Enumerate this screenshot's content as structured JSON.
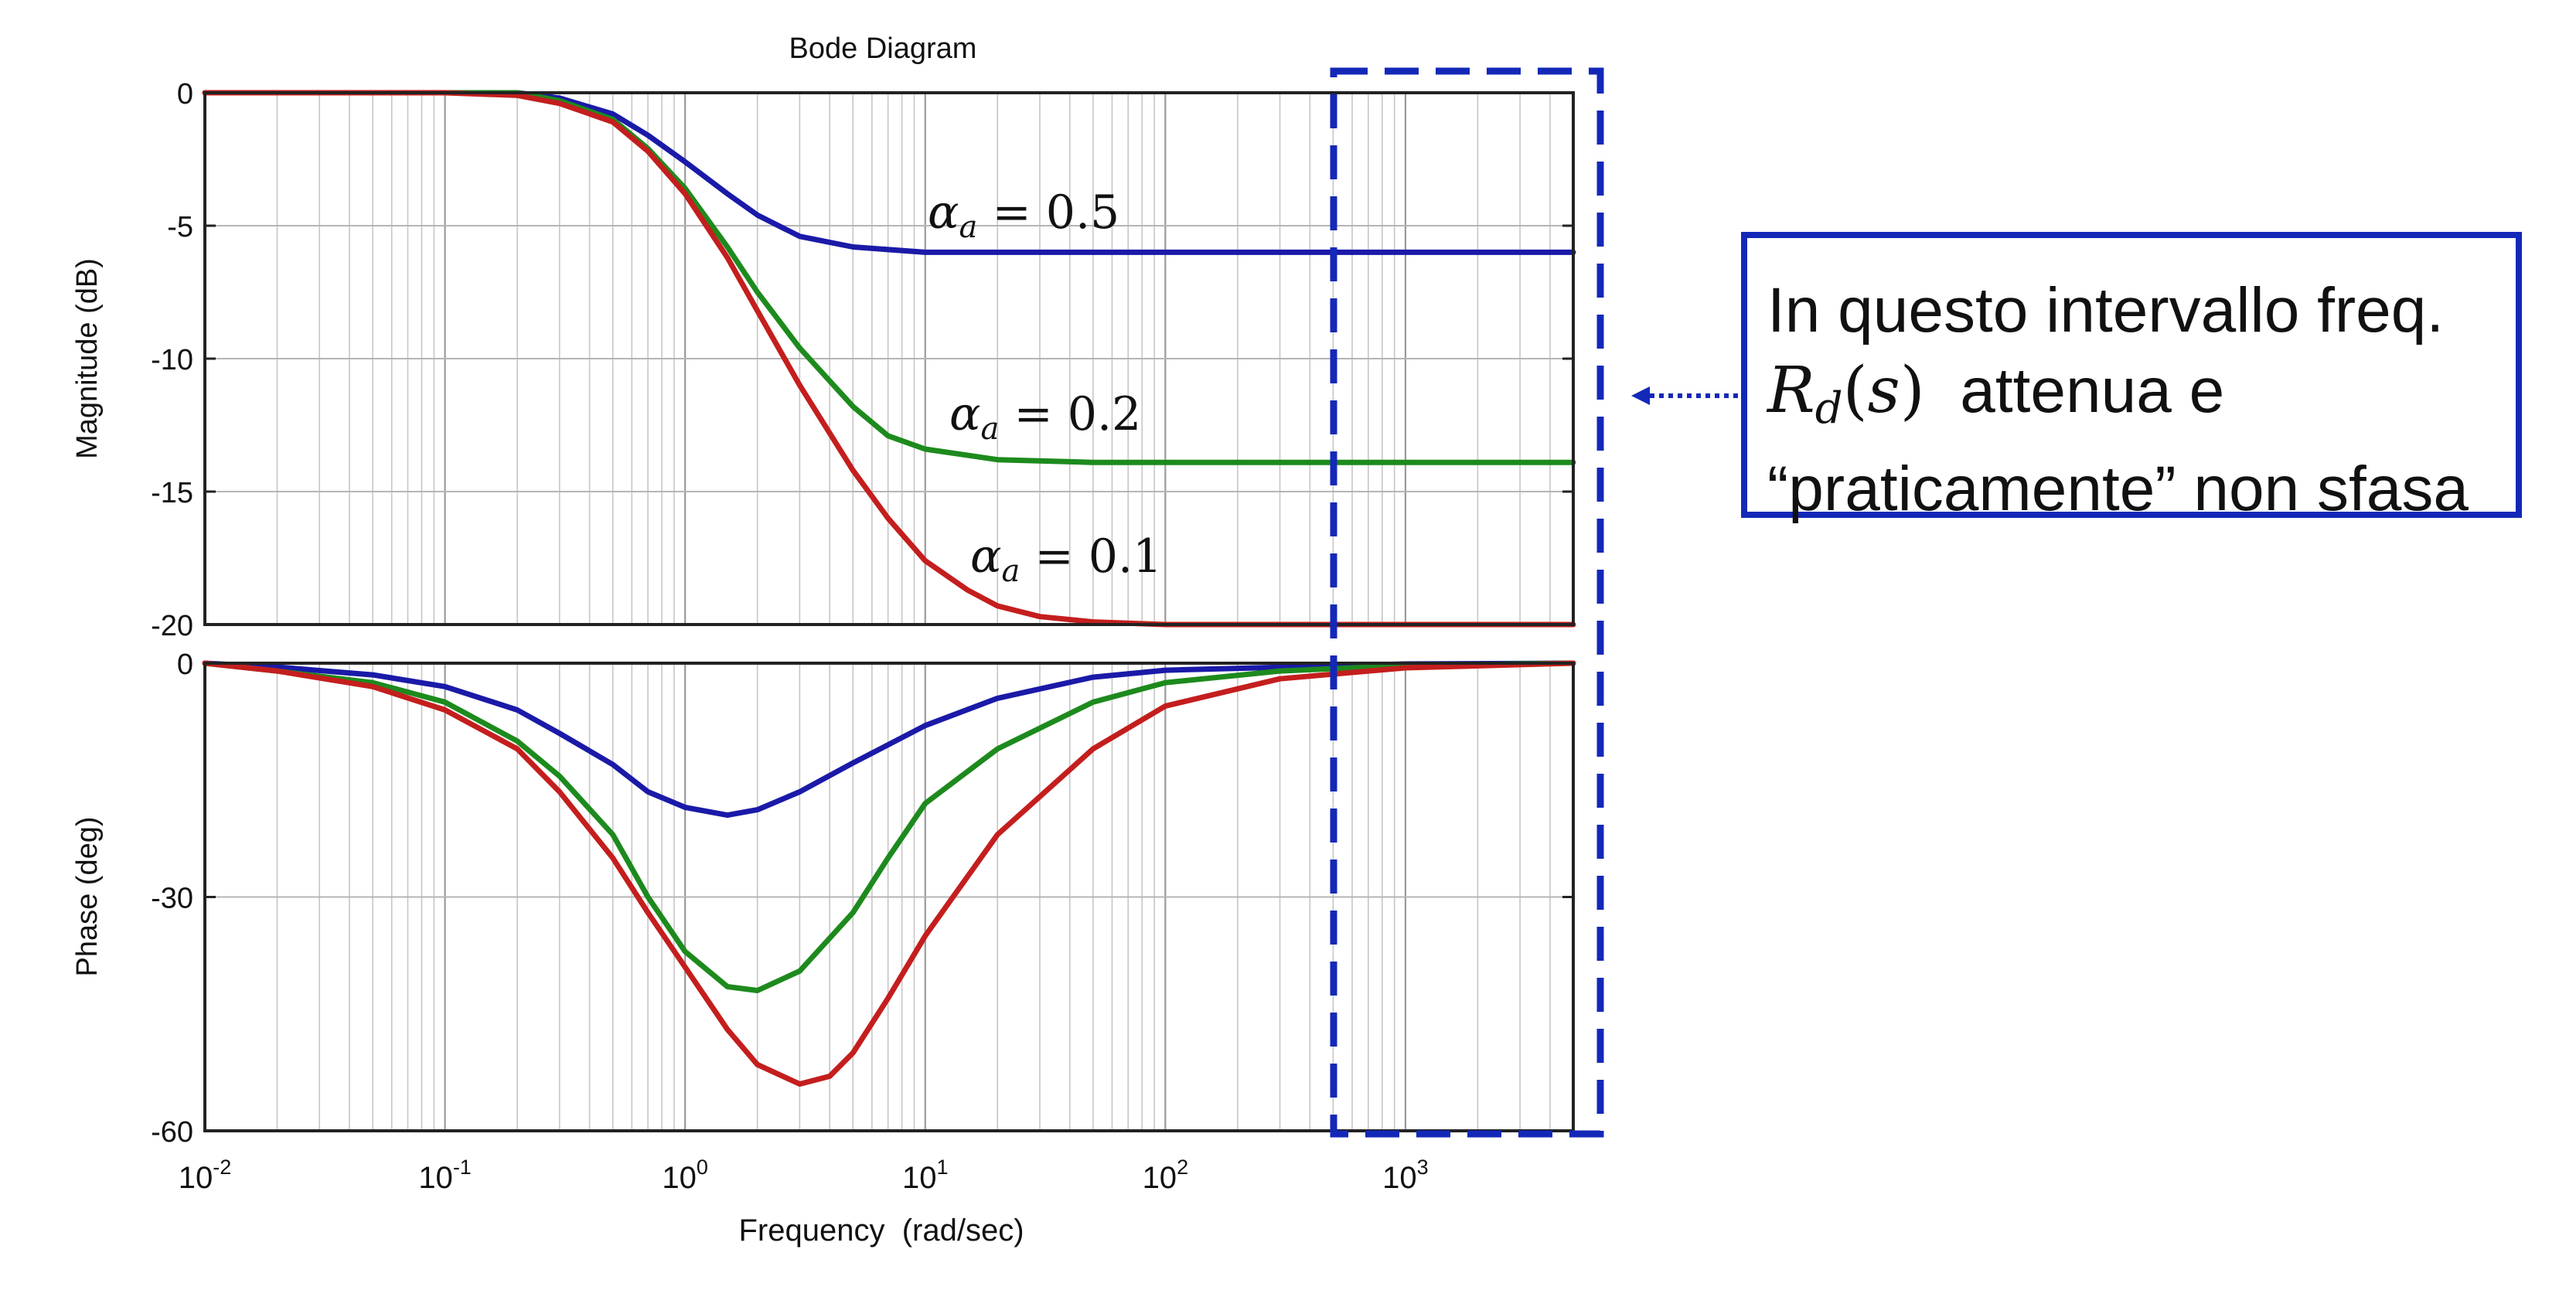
{
  "chart_data": [
    {
      "type": "line",
      "panel": "magnitude",
      "title": "Bode Diagram",
      "ylabel": "Magnitude (dB)",
      "xscale": "log",
      "xlim": [
        0.01,
        5000
      ],
      "ylim": [
        -20,
        0
      ],
      "yticks": [
        0,
        -5,
        -10,
        -15,
        -20
      ],
      "ytick_labels": [
        "0",
        "-5",
        "-10",
        "-15",
        "-20"
      ],
      "grid": true,
      "series": [
        {
          "name": "α_a = 0.5",
          "color": "#1a1aa8",
          "x": [
            0.01,
            0.1,
            0.2,
            0.3,
            0.5,
            0.7,
            1,
            1.5,
            2,
            3,
            5,
            10,
            20,
            50,
            100,
            1000,
            5000
          ],
          "y": [
            0,
            0,
            0,
            -0.2,
            -0.8,
            -1.6,
            -2.6,
            -3.8,
            -4.6,
            -5.4,
            -5.8,
            -6.0,
            -6.0,
            -6.0,
            -6.0,
            -6.0,
            -6.0
          ]
        },
        {
          "name": "α_a = 0.2",
          "color": "#1d8a1d",
          "x": [
            0.01,
            0.1,
            0.2,
            0.3,
            0.5,
            0.7,
            1,
            1.5,
            2,
            3,
            5,
            7,
            10,
            20,
            50,
            100,
            1000,
            5000
          ],
          "y": [
            0,
            0,
            0,
            -0.3,
            -1.0,
            -2.1,
            -3.6,
            -5.8,
            -7.5,
            -9.6,
            -11.8,
            -12.9,
            -13.4,
            -13.8,
            -13.9,
            -13.9,
            -13.9,
            -13.9
          ]
        },
        {
          "name": "α_a = 0.1",
          "color": "#c41e1e",
          "x": [
            0.01,
            0.1,
            0.2,
            0.3,
            0.5,
            0.7,
            1,
            1.5,
            2,
            3,
            5,
            7,
            10,
            15,
            20,
            30,
            50,
            100,
            1000,
            5000
          ],
          "y": [
            0,
            0,
            -0.1,
            -0.4,
            -1.1,
            -2.2,
            -3.8,
            -6.2,
            -8.2,
            -11.0,
            -14.2,
            -16.0,
            -17.6,
            -18.7,
            -19.3,
            -19.7,
            -19.9,
            -20.0,
            -20.0,
            -20.0
          ]
        }
      ],
      "annotations": [
        {
          "text_var": "α",
          "text_sub": "a",
          "text_rest": " = 0.5"
        },
        {
          "text_var": "α",
          "text_sub": "a",
          "text_rest": " = 0.2"
        },
        {
          "text_var": "α",
          "text_sub": "a",
          "text_rest": " = 0.1"
        }
      ]
    },
    {
      "type": "line",
      "panel": "phase",
      "xlabel": "Frequency  (rad/sec)",
      "ylabel": "Phase (deg)",
      "xscale": "log",
      "xlim": [
        0.01,
        5000
      ],
      "ylim": [
        -60,
        0
      ],
      "yticks": [
        0,
        -30,
        -60
      ],
      "ytick_labels": [
        "0",
        "-30",
        "-60"
      ],
      "xticks": [
        0.01,
        0.1,
        1,
        10,
        100,
        1000
      ],
      "xtick_base": [
        "10",
        "10",
        "10",
        "10",
        "10",
        "10"
      ],
      "xtick_exp": [
        "-2",
        "-1",
        "0",
        "1",
        "2",
        "3"
      ],
      "grid": true,
      "series": [
        {
          "name": "α_a = 0.5",
          "color": "#1a1aa8",
          "x": [
            0.01,
            0.02,
            0.05,
            0.1,
            0.2,
            0.3,
            0.5,
            0.7,
            1,
            1.5,
            2,
            3,
            5,
            10,
            20,
            50,
            100,
            1000,
            5000
          ],
          "y": [
            0,
            -0.5,
            -1.5,
            -3,
            -6,
            -9,
            -13,
            -16.5,
            -18.5,
            -19.5,
            -18.8,
            -16.5,
            -12.8,
            -8,
            -4.5,
            -1.8,
            -0.9,
            -0.1,
            0
          ]
        },
        {
          "name": "α_a = 0.2",
          "color": "#1d8a1d",
          "x": [
            0.01,
            0.02,
            0.05,
            0.1,
            0.2,
            0.3,
            0.5,
            0.7,
            1,
            1.5,
            2,
            3,
            5,
            7,
            10,
            20,
            50,
            100,
            300,
            1000,
            5000
          ],
          "y": [
            0,
            -1,
            -2.5,
            -5,
            -10,
            -14.5,
            -22,
            -30,
            -37,
            -41.5,
            -42,
            -39.5,
            -32,
            -25,
            -18,
            -11,
            -5,
            -2.5,
            -1,
            -0.3,
            0
          ]
        },
        {
          "name": "α_a = 0.1",
          "color": "#c41e1e",
          "x": [
            0.01,
            0.02,
            0.05,
            0.1,
            0.2,
            0.3,
            0.5,
            0.7,
            1,
            1.5,
            2,
            3,
            4,
            5,
            7,
            10,
            20,
            50,
            100,
            300,
            1000,
            5000
          ],
          "y": [
            0,
            -1,
            -3,
            -6,
            -11,
            -16.5,
            -25,
            -32,
            -39,
            -47,
            -51.5,
            -54,
            -53,
            -50,
            -43,
            -35,
            -22,
            -11,
            -5.5,
            -2,
            -0.6,
            0
          ]
        }
      ]
    }
  ],
  "callout": {
    "line1": "In questo intervallo freq.",
    "math_R": "R",
    "math_sub": "d",
    "math_arg_open": "(",
    "math_arg": "s",
    "math_arg_close": ")",
    "line2_rest": "  attenua e",
    "line3": "“praticamente” non sfasa"
  },
  "colors": {
    "highlight_box": "#1428b8",
    "arrow": "#1428b8"
  }
}
